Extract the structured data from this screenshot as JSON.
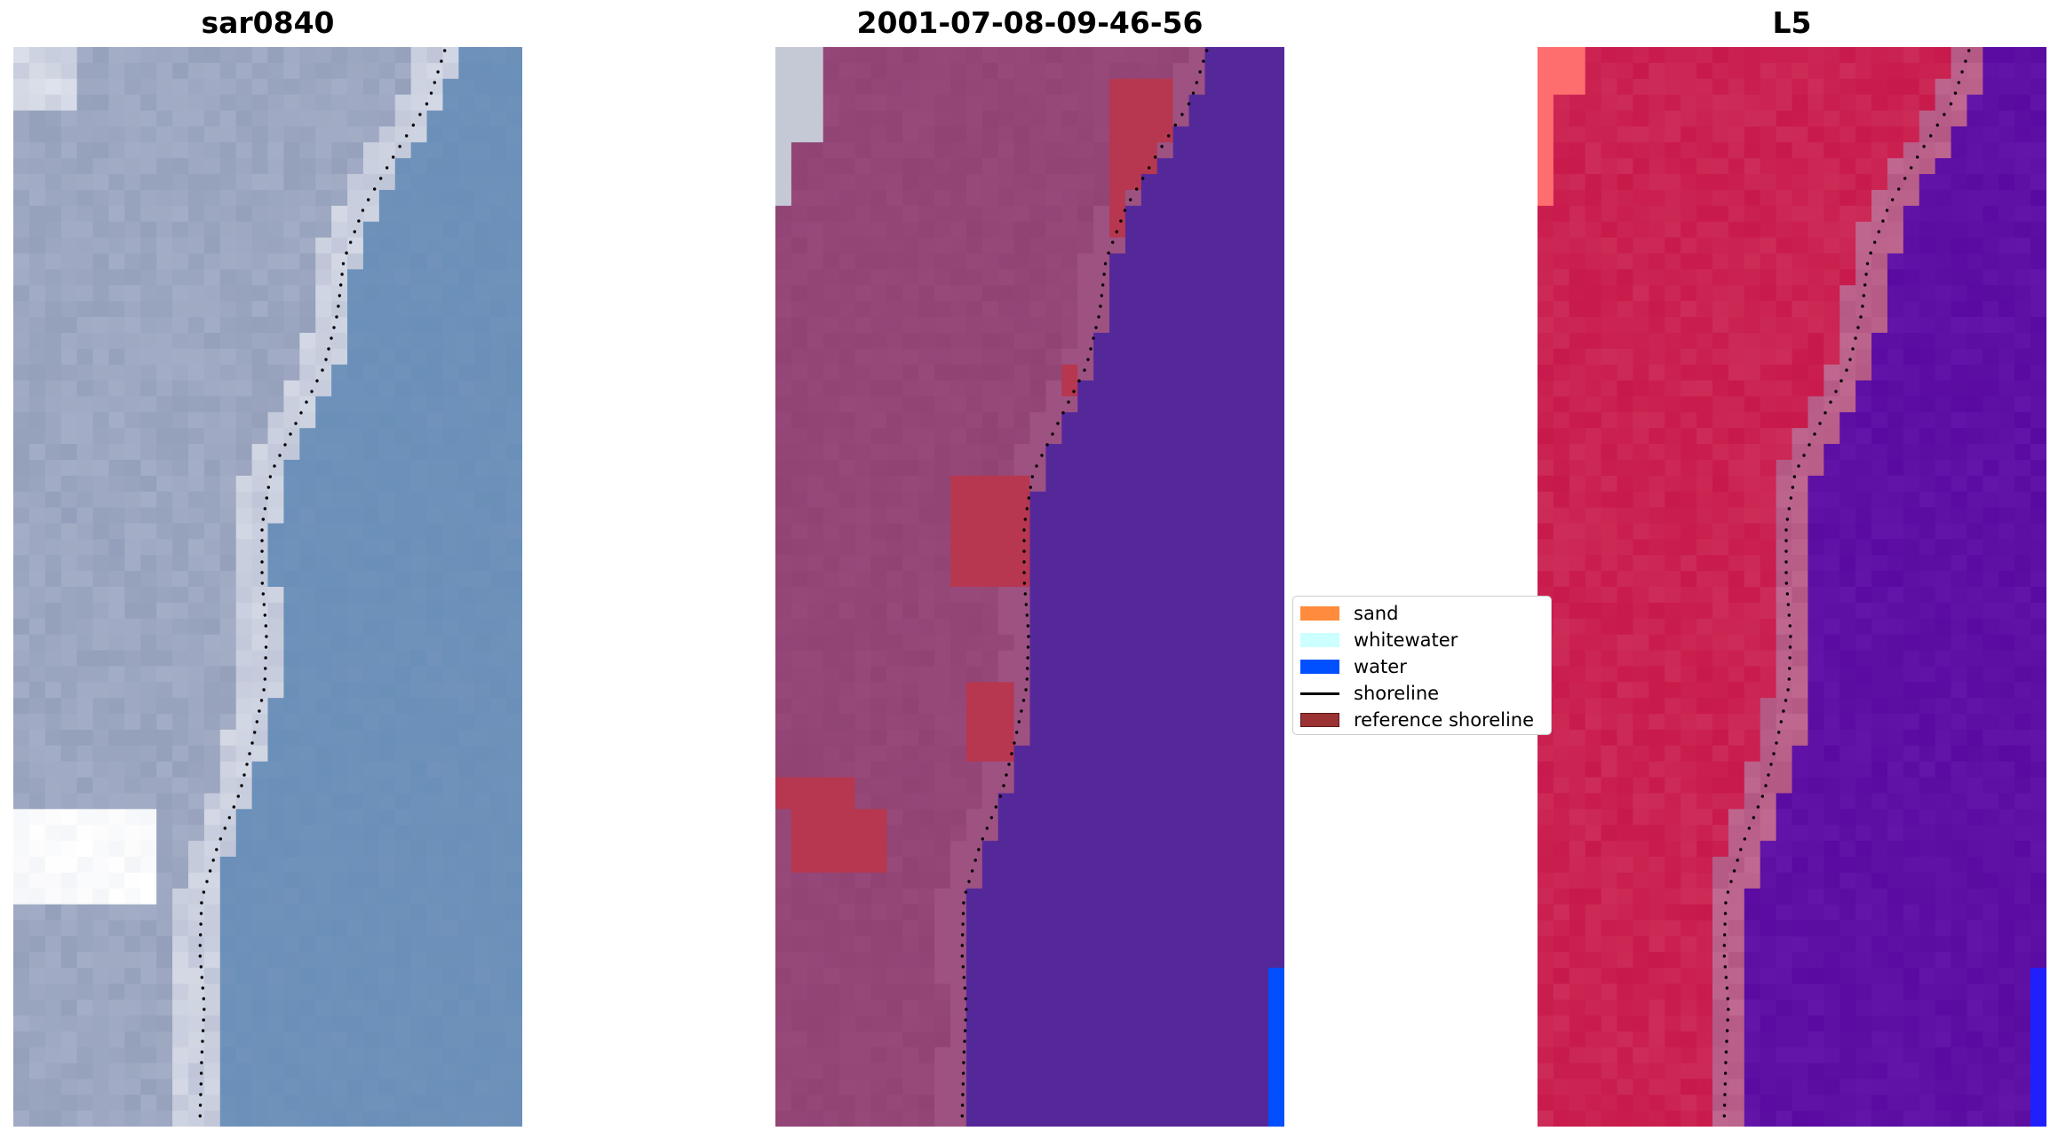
{
  "panels": [
    {
      "id": "rgb",
      "title": "sar0840"
    },
    {
      "id": "classified",
      "title": "2001-07-08-09-46-56"
    },
    {
      "id": "index",
      "title": "L5"
    }
  ],
  "legend": {
    "items": [
      {
        "label": "sand",
        "kind": "patch",
        "color": "#ff8c3c"
      },
      {
        "label": "whitewater",
        "kind": "patch",
        "color": "#ccffff"
      },
      {
        "label": "water",
        "kind": "patch",
        "color": "#0050ff"
      },
      {
        "label": "shoreline",
        "kind": "line",
        "color": "#000000"
      },
      {
        "label": "reference shoreline",
        "kind": "patch",
        "color": "#9b3334"
      }
    ]
  },
  "colors": {
    "rgb_water": "#6a8fb8",
    "rgb_land": "#a4adc6",
    "rgb_bright": "#e8ebf2",
    "class_land": "#97497a",
    "class_water": "#55289a",
    "class_sand_overlay": "#b6374f",
    "class_cloud": "#c5c9d6",
    "water_pixels": "#0050ff",
    "index_land": "#c8194b",
    "index_water": "#5a0aa0",
    "index_transition": "#c06890",
    "index_bright": "#ff6e6e",
    "shoreline_dots": "#000000"
  }
}
